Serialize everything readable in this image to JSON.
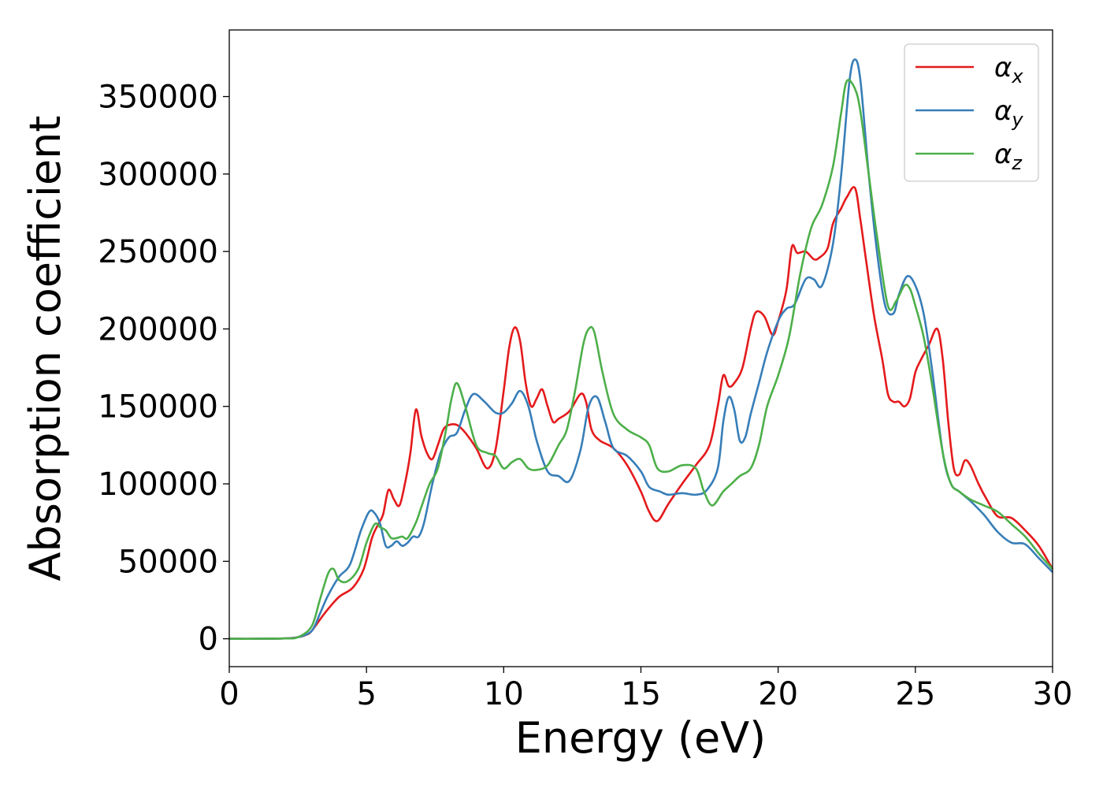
{
  "chart_data": {
    "type": "line",
    "title": "",
    "xlabel": "Energy (eV)",
    "ylabel": "Absorption coefficient",
    "xlim": [
      0,
      30
    ],
    "ylim": [
      -18000,
      393000
    ],
    "xticks": [
      "0",
      "5",
      "10",
      "15",
      "20",
      "25",
      "30"
    ],
    "yticks": [
      "0",
      "50000",
      "100000",
      "150000",
      "200000",
      "250000",
      "300000",
      "350000"
    ],
    "grid": false,
    "legend_position": "top-right",
    "series": [
      {
        "name": "α",
        "sub": "x",
        "color": "#e41a1c",
        "x": [
          0,
          1,
          2,
          2.5,
          2.8,
          3,
          3.5,
          4,
          4.5,
          4.9,
          5.2,
          5.4,
          5.6,
          5.8,
          6,
          6.2,
          6.4,
          6.6,
          6.8,
          7,
          7.2,
          7.4,
          7.6,
          7.8,
          8,
          8.3,
          8.6,
          9,
          9.4,
          9.7,
          10,
          10.2,
          10.4,
          10.6,
          10.8,
          11,
          11.2,
          11.4,
          11.6,
          11.8,
          12,
          12.4,
          12.8,
          13,
          13.2,
          13.5,
          14,
          14.5,
          15,
          15.3,
          15.6,
          16,
          16.5,
          17,
          17.5,
          17.8,
          18,
          18.2,
          18.4,
          18.7,
          19,
          19.2,
          19.5,
          19.8,
          20,
          20.3,
          20.5,
          20.7,
          21,
          21.3,
          21.5,
          21.8,
          22,
          22.3,
          22.5,
          22.8,
          23,
          23.2,
          23.5,
          23.8,
          24,
          24.2,
          24.4,
          24.6,
          24.8,
          25,
          25.2,
          25.5,
          25.8,
          26,
          26.2,
          26.4,
          26.6,
          26.8,
          27,
          27.3,
          27.6,
          28,
          28.5,
          29,
          29.5,
          30
        ],
        "y": [
          0,
          0,
          200,
          1000,
          2500,
          5000,
          17000,
          27000,
          33000,
          45000,
          65000,
          73000,
          80000,
          96000,
          90000,
          86000,
          100000,
          120000,
          148000,
          131000,
          120000,
          116000,
          125000,
          135000,
          138000,
          138000,
          133000,
          123000,
          110000,
          122000,
          160000,
          188000,
          201000,
          192000,
          165000,
          150000,
          155000,
          161000,
          150000,
          140000,
          142000,
          147000,
          158000,
          153000,
          135000,
          128000,
          123000,
          112000,
          95000,
          82000,
          76000,
          87000,
          100000,
          112000,
          125000,
          150000,
          170000,
          163000,
          165000,
          175000,
          200000,
          211000,
          208000,
          196000,
          205000,
          225000,
          253000,
          249000,
          250000,
          245000,
          246000,
          252000,
          268000,
          278000,
          285000,
          291000,
          270000,
          245000,
          208000,
          180000,
          158000,
          153000,
          153000,
          150000,
          155000,
          172000,
          180000,
          190000,
          200000,
          180000,
          140000,
          110000,
          106000,
          115000,
          112000,
          100000,
          90000,
          79000,
          78000,
          70000,
          60000,
          45000
        ]
      },
      {
        "name": "α",
        "sub": "y",
        "color": "#377eb8",
        "x": [
          0,
          1,
          2,
          2.5,
          3,
          3.3,
          3.6,
          4,
          4.4,
          4.8,
          5.1,
          5.3,
          5.5,
          5.7,
          5.9,
          6.1,
          6.3,
          6.5,
          6.7,
          6.9,
          7.1,
          7.4,
          7.7,
          8,
          8.3,
          8.6,
          8.9,
          9.3,
          9.7,
          10,
          10.3,
          10.6,
          10.9,
          11.2,
          11.6,
          12,
          12.4,
          12.8,
          13.1,
          13.4,
          13.7,
          14,
          14.5,
          15,
          15.3,
          15.7,
          16,
          16.5,
          17,
          17.4,
          17.8,
          18,
          18.2,
          18.4,
          18.6,
          18.8,
          19,
          19.3,
          19.6,
          20,
          20.3,
          20.6,
          21,
          21.3,
          21.6,
          22,
          22.3,
          22.6,
          22.8,
          23,
          23.3,
          23.6,
          23.9,
          24.2,
          24.4,
          24.7,
          25,
          25.3,
          25.6,
          26,
          26.3,
          26.6,
          27,
          27.5,
          28,
          28.5,
          29,
          29.5,
          30
        ],
        "y": [
          0,
          0,
          200,
          1000,
          5000,
          16000,
          28000,
          40000,
          48000,
          70000,
          82000,
          81000,
          74000,
          60000,
          60000,
          63000,
          60000,
          62000,
          66000,
          66000,
          75000,
          100000,
          120000,
          130000,
          133000,
          148000,
          158000,
          153000,
          146000,
          146000,
          152000,
          160000,
          150000,
          128000,
          108000,
          105000,
          102000,
          122000,
          150000,
          156000,
          140000,
          123000,
          118000,
          108000,
          98000,
          95000,
          93000,
          94000,
          93000,
          96000,
          110000,
          140000,
          156000,
          148000,
          128000,
          130000,
          145000,
          165000,
          185000,
          205000,
          213000,
          216000,
          232000,
          232000,
          228000,
          255000,
          300000,
          360000,
          374000,
          360000,
          300000,
          250000,
          215000,
          210000,
          222000,
          234000,
          228000,
          210000,
          175000,
          120000,
          100000,
          95000,
          89000,
          80000,
          69000,
          62000,
          61000,
          52000,
          43000
        ]
      },
      {
        "name": "α",
        "sub": "z",
        "color": "#4daf4a",
        "x": [
          0,
          1,
          2,
          2.5,
          3,
          3.3,
          3.6,
          3.8,
          4,
          4.3,
          4.7,
          5,
          5.3,
          5.5,
          5.7,
          5.9,
          6.1,
          6.3,
          6.5,
          6.8,
          7,
          7.3,
          7.6,
          7.9,
          8.1,
          8.3,
          8.6,
          9,
          9.4,
          9.7,
          10,
          10.3,
          10.6,
          10.9,
          11.2,
          11.6,
          12,
          12.3,
          12.6,
          12.9,
          13.1,
          13.3,
          13.6,
          14,
          14.5,
          15,
          15.3,
          15.6,
          16,
          16.5,
          17,
          17.3,
          17.6,
          18,
          18.3,
          18.6,
          19,
          19.3,
          19.6,
          20,
          20.4,
          20.8,
          21.2,
          21.6,
          22,
          22.3,
          22.5,
          22.8,
          23,
          23.3,
          23.6,
          24,
          24.3,
          24.6,
          24.8,
          25,
          25.3,
          25.6,
          26,
          26.3,
          26.6,
          27,
          27.5,
          28,
          28.5,
          29,
          29.5,
          30
        ],
        "y": [
          0,
          0,
          200,
          1000,
          8000,
          25000,
          42000,
          45000,
          38000,
          37000,
          45000,
          62000,
          74000,
          72000,
          70000,
          65000,
          65000,
          66000,
          65000,
          75000,
          85000,
          100000,
          110000,
          135000,
          155000,
          165000,
          150000,
          125000,
          120000,
          118000,
          110000,
          114000,
          116000,
          110000,
          109000,
          112000,
          125000,
          135000,
          160000,
          190000,
          200000,
          198000,
          172000,
          145000,
          135000,
          130000,
          125000,
          110000,
          108000,
          112000,
          110000,
          95000,
          86000,
          95000,
          100000,
          105000,
          110000,
          125000,
          150000,
          170000,
          195000,
          235000,
          265000,
          280000,
          305000,
          340000,
          360000,
          355000,
          340000,
          300000,
          260000,
          215000,
          218000,
          228000,
          226000,
          215000,
          195000,
          165000,
          120000,
          100000,
          95000,
          90000,
          86000,
          82000,
          74000,
          66000,
          55000,
          45000
        ]
      }
    ]
  }
}
